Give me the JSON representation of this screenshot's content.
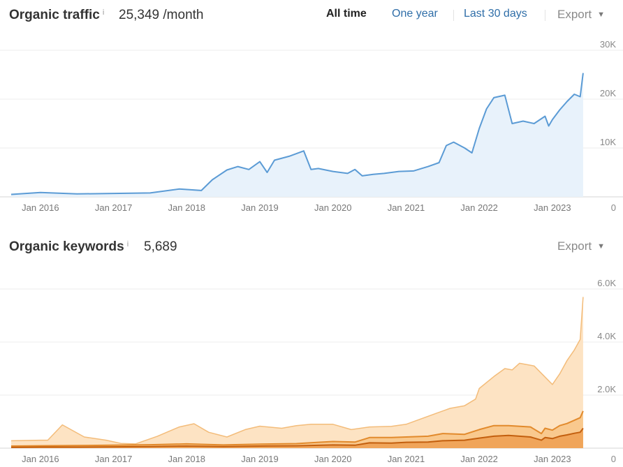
{
  "traffic_panel": {
    "title": "Organic traffic",
    "info_icon": "i",
    "value": "25,349 /month",
    "tabs": [
      {
        "label": "All time",
        "active": true
      },
      {
        "label": "One year",
        "active": false
      },
      {
        "label": "Last 30 days",
        "active": false
      }
    ],
    "export_label": "Export",
    "caret_icon": "▼"
  },
  "keywords_panel": {
    "title": "Organic keywords",
    "info_icon": "i",
    "value": "5,689",
    "export_label": "Export",
    "caret_icon": "▼"
  },
  "chart_data": [
    {
      "type": "area",
      "title": "Organic traffic",
      "x_ticks": [
        "Jan 2016",
        "Jan 2017",
        "Jan 2018",
        "Jan 2019",
        "Jan 2020",
        "Jan 2021",
        "Jan 2022",
        "Jan 2023"
      ],
      "y_ticks": [
        "30K",
        "20K",
        "10K",
        "0"
      ],
      "ylim": [
        0,
        30000
      ],
      "xlim": [
        2015.6,
        2023.45
      ],
      "grid": true,
      "colors": {
        "line": "#5b9bd5",
        "fill": "#e8f2fb"
      },
      "series": [
        {
          "x": [
            2015.6,
            2016.0,
            2016.5,
            2017.0,
            2017.5,
            2017.9,
            2018.2,
            2018.35,
            2018.55,
            2018.7,
            2018.85,
            2019.0,
            2019.1,
            2019.2,
            2019.4,
            2019.6,
            2019.7,
            2019.8,
            2020.0,
            2020.2,
            2020.3,
            2020.4,
            2020.55,
            2020.7,
            2020.9,
            2021.1,
            2021.3,
            2021.45,
            2021.55,
            2021.65,
            2021.8,
            2021.9,
            2022.0,
            2022.1,
            2022.2,
            2022.35,
            2022.45,
            2022.6,
            2022.75,
            2022.9,
            2022.95,
            2023.0,
            2023.1,
            2023.2,
            2023.3,
            2023.38,
            2023.42
          ],
          "y": [
            500,
            900,
            600,
            700,
            800,
            1600,
            1300,
            3500,
            5500,
            6200,
            5600,
            7200,
            5000,
            7500,
            8300,
            9400,
            5600,
            5800,
            5200,
            4800,
            5600,
            4300,
            4600,
            4800,
            5200,
            5300,
            6200,
            7000,
            10500,
            11200,
            10000,
            9000,
            14000,
            18000,
            20300,
            20800,
            15000,
            15500,
            15000,
            16500,
            14500,
            15800,
            17800,
            19500,
            21000,
            20500,
            25349
          ]
        }
      ]
    },
    {
      "type": "area",
      "title": "Organic keywords",
      "x_ticks": [
        "Jan 2016",
        "Jan 2017",
        "Jan 2018",
        "Jan 2019",
        "Jan 2020",
        "Jan 2021",
        "Jan 2022",
        "Jan 2023"
      ],
      "y_ticks": [
        "6.0K",
        "4.0K",
        "2.0K",
        "0"
      ],
      "ylim": [
        0,
        6000
      ],
      "xlim": [
        2015.6,
        2023.45
      ],
      "grid": true,
      "colors": {
        "outer_fill": "#fde3c3",
        "outer_line": "#f3bc7a",
        "mid_fill": "#f9c98e",
        "mid_line": "#e28a2c",
        "inner_fill": "#f0a55a",
        "inner_line": "#c35f0e"
      },
      "series": [
        {
          "name": "",
          "x": [
            2015.6,
            2016.0,
            2016.1,
            2016.3,
            2016.6,
            2016.9,
            2017.1,
            2017.3,
            2017.6,
            2017.9,
            2018.1,
            2018.3,
            2018.55,
            2018.8,
            2019.0,
            2019.3,
            2019.5,
            2019.7,
            2020.0,
            2020.25,
            2020.5,
            2020.8,
            2021.0,
            2021.2,
            2021.4,
            2021.6,
            2021.8,
            2021.95,
            2022.0,
            2022.2,
            2022.35,
            2022.45,
            2022.55,
            2022.75,
            2023.0,
            2023.1,
            2023.2,
            2023.3,
            2023.38,
            2023.42
          ],
          "y": [
            280,
            300,
            300,
            880,
            420,
            300,
            180,
            160,
            450,
            800,
            920,
            600,
            420,
            700,
            830,
            750,
            850,
            900,
            900,
            700,
            800,
            820,
            900,
            1100,
            1300,
            1500,
            1600,
            1850,
            2250,
            2700,
            3000,
            2950,
            3200,
            3100,
            2400,
            2800,
            3300,
            3700,
            4100,
            5700
          ]
        },
        {
          "name": "",
          "x": [
            2015.6,
            2016.0,
            2016.5,
            2017.0,
            2017.5,
            2018.0,
            2018.5,
            2019.0,
            2019.5,
            2019.8,
            2020.0,
            2020.3,
            2020.5,
            2020.8,
            2021.0,
            2021.3,
            2021.5,
            2021.8,
            2022.0,
            2022.2,
            2022.4,
            2022.7,
            2022.85,
            2022.9,
            2023.0,
            2023.1,
            2023.2,
            2023.3,
            2023.38,
            2023.42
          ],
          "y": [
            80,
            90,
            100,
            110,
            130,
            160,
            120,
            150,
            170,
            220,
            250,
            230,
            400,
            400,
            420,
            450,
            550,
            520,
            700,
            850,
            850,
            800,
            550,
            750,
            680,
            850,
            930,
            1050,
            1150,
            1400
          ]
        },
        {
          "name": "",
          "x": [
            2015.6,
            2016.0,
            2016.5,
            2017.0,
            2017.5,
            2018.0,
            2018.5,
            2019.0,
            2019.5,
            2020.0,
            2020.3,
            2020.5,
            2020.8,
            2021.0,
            2021.3,
            2021.5,
            2021.8,
            2022.0,
            2022.2,
            2022.4,
            2022.7,
            2022.85,
            2022.9,
            2023.0,
            2023.1,
            2023.2,
            2023.3,
            2023.38,
            2023.42
          ],
          "y": [
            30,
            40,
            40,
            50,
            60,
            80,
            60,
            80,
            90,
            120,
            110,
            200,
            190,
            220,
            230,
            280,
            300,
            380,
            450,
            480,
            420,
            300,
            400,
            360,
            450,
            500,
            560,
            600,
            750
          ]
        }
      ]
    }
  ]
}
